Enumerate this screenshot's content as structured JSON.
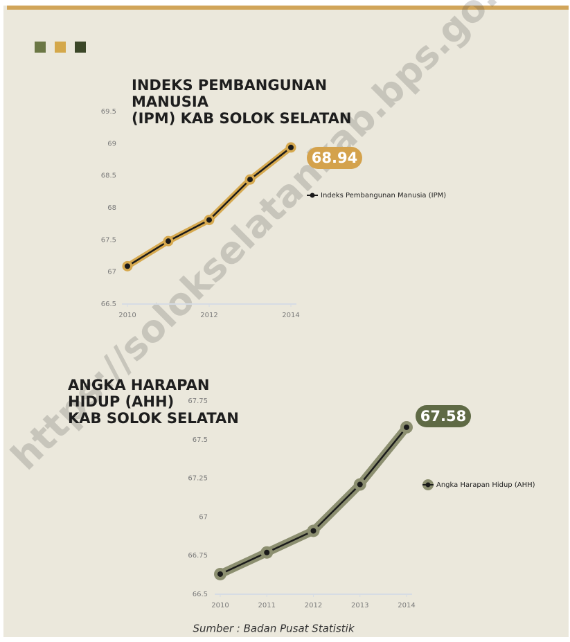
{
  "chart_data": [
    {
      "type": "line",
      "title": [
        "INDEKS PEMBANGUNAN",
        "MANUSIA",
        "(IPM) KAB SOLOK SELATAN"
      ],
      "x": [
        2010,
        2011,
        2012,
        2013,
        2014
      ],
      "xlim": [
        2010,
        2014
      ],
      "xticks": [
        2010,
        2012,
        2014
      ],
      "ylim": [
        66.5,
        69.5
      ],
      "yticks": [
        66.5,
        67,
        67.5,
        68,
        68.5,
        69,
        69.5
      ],
      "series": [
        {
          "name": "Indeks Pembangunan Manusia (IPM)",
          "color": "#1a1a1a",
          "halo_color": "#d6a94f",
          "values": [
            67.09,
            67.48,
            67.81,
            68.44,
            68.94
          ]
        }
      ],
      "data_label_color": "#d4a24c"
    },
    {
      "type": "line",
      "title": [
        "ANGKA HARAPAN",
        "HIDUP  (AHH)",
        "KAB SOLOK SELATAN"
      ],
      "x": [
        2010,
        2011,
        2012,
        2013,
        2014
      ],
      "xlim": [
        2010,
        2014
      ],
      "xticks": [
        2010,
        2011,
        2012,
        2013,
        2014
      ],
      "ylim": [
        66.5,
        67.75
      ],
      "yticks": [
        66.5,
        66.75,
        67,
        67.25,
        67.5,
        67.75
      ],
      "series": [
        {
          "name": "Angka Harapan Hidup (AHH)",
          "color": "#1a1a1a",
          "halo_color": "#8c8f70",
          "values": [
            66.63,
            66.77,
            66.91,
            67.21,
            67.58
          ]
        }
      ],
      "data_label_color": "#5f6a45"
    }
  ],
  "source": "Sumber : Badan Pusat Statistik",
  "watermark": "https://solokselatankab.bps.go.id"
}
